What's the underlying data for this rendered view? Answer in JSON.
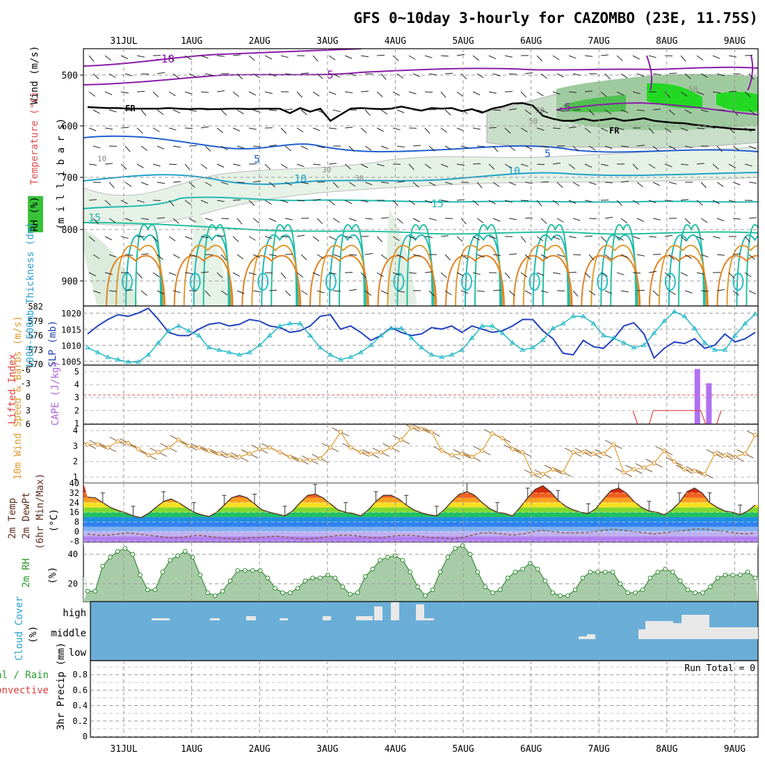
{
  "chart_data": {
    "type": "meteogram",
    "title": "GFS 0~10day 3-hourly for CAZOMBO (23E, 11.75S)",
    "dates": [
      "31JUL",
      "1AUG",
      "2AUG",
      "3AUG",
      "4AUG",
      "5AUG",
      "6AUG",
      "7AUG",
      "8AUG",
      "9AUG"
    ],
    "panels": {
      "upper_air": {
        "ylabels": [
          "Wind (m/s)",
          "Temperature (°C)",
          "RH (%)",
          "(m i l l i b a r s)"
        ],
        "ylim": [
          1000,
          450
        ],
        "yticks": [
          500,
          600,
          700,
          800,
          900
        ],
        "contour_labels": [
          "-10",
          "5",
          "FR",
          "-5",
          "FR",
          "5",
          "5",
          "10",
          "10",
          "15",
          "15",
          "50",
          "50",
          "30",
          "30",
          "30",
          "10"
        ],
        "freezing_level_mb": [
          563,
          564,
          565,
          565,
          566,
          566,
          566,
          566,
          565,
          566,
          567,
          566,
          567,
          567,
          566,
          566,
          567,
          566,
          566,
          566,
          575,
          565,
          572,
          566,
          590,
          578,
          566,
          565,
          566,
          567,
          566,
          562,
          566,
          570,
          565,
          566,
          565,
          571,
          567,
          574,
          566,
          562,
          556,
          555,
          560,
          580,
          586,
          590,
          590,
          586,
          590,
          588,
          585,
          590,
          588,
          585,
          590,
          592,
          594,
          595,
          598,
          600,
          602,
          604,
          606,
          607,
          608
        ]
      },
      "slp_thickness": {
        "ylabels": [
          "1000-500mb Thickness (dm)",
          "SLP (mb)"
        ],
        "left_ticks": [
          "582",
          "579",
          "576",
          "573",
          "570"
        ],
        "right_ticks": [
          "1020",
          "1015",
          "1010",
          "1005"
        ],
        "slp_mb": [
          1013.5,
          1016,
          1018,
          1019.5,
          1019,
          1020,
          1021.5,
          1018,
          1014,
          1013,
          1013,
          1015,
          1016.5,
          1017,
          1016,
          1016.5,
          1018,
          1017.5,
          1016,
          1015.5,
          1014,
          1014.5,
          1016,
          1019,
          1019.5,
          1015,
          1016,
          1014,
          1011.5,
          1013,
          1015.5,
          1014,
          1013,
          1013.5,
          1015.5,
          1015,
          1016,
          1014,
          1016,
          1015,
          1014,
          1014.5,
          1016,
          1018,
          1018,
          1014.5,
          1012,
          1007.5,
          1007,
          1011.5,
          1009.5,
          1009,
          1012,
          1016,
          1017,
          1013.5,
          1006,
          1009,
          1011,
          1010.5,
          1012,
          1009,
          1010,
          1013.5,
          1011,
          1012,
          1014
        ],
        "thickness_dm": [
          573.5,
          572.5,
          571.5,
          571,
          570.5,
          570.5,
          572,
          574.5,
          577,
          578,
          577,
          576,
          573.5,
          573,
          572.5,
          572,
          572.5,
          574,
          576,
          578,
          578.5,
          578.5,
          576,
          573.5,
          572,
          571,
          571.5,
          572.5,
          574,
          576,
          577.5,
          577.5,
          575.5,
          573.5,
          572,
          571.5,
          572,
          573,
          575.5,
          578,
          578,
          576.5,
          574.5,
          573,
          573.5,
          575,
          577.5,
          578.5,
          580,
          580,
          578.5,
          576,
          575.5,
          574.5,
          573.5,
          574,
          576.5,
          579,
          581,
          580,
          577.5,
          574.5,
          573,
          573,
          576,
          578.5,
          580.5
        ]
      },
      "cape_li": {
        "ylabels": [
          "Lifted Index",
          "CAPE (J/kg)"
        ],
        "left_ticks": [
          "-6",
          "-3",
          "0",
          "3",
          "6"
        ],
        "right_ticks": [
          "5",
          "4",
          "3",
          "2",
          "1"
        ],
        "cape_bars": [
          {
            "day": 8.45,
            "value": 5.2
          },
          {
            "day": 8.62,
            "value": 4.1
          }
        ],
        "lifted_index_line": [
          {
            "day": 7.5,
            "value": 6
          },
          {
            "day": 7.62,
            "value": 4.2
          },
          {
            "day": 7.72,
            "value": 4.6
          },
          {
            "day": 7.8,
            "value": 6
          },
          {
            "day": 8.5,
            "value": 6
          },
          {
            "day": 8.62,
            "value": 4.3
          },
          {
            "day": 8.72,
            "value": 4.7
          },
          {
            "day": 8.8,
            "value": 6
          }
        ]
      },
      "wind10m": {
        "ylabels": [
          "10m Wind Speed & Barbs (m/s)"
        ],
        "yticks": [
          "4",
          "3",
          "2",
          "1"
        ],
        "speed_ms": [
          3.1,
          3.1,
          2.9,
          3.3,
          3.2,
          2.8,
          2.4,
          2.6,
          2.9,
          3.4,
          3.0,
          2.9,
          2.7,
          2.5,
          2.4,
          2.3,
          2.5,
          2.8,
          2.9,
          2.6,
          2.3,
          2.1,
          2.1,
          2.2,
          2.9,
          3.9,
          2.9,
          2.6,
          2.5,
          2.6,
          2.9,
          3.4,
          4.2,
          4.1,
          3.9,
          2.7,
          2.4,
          2.5,
          2.3,
          2.7,
          3.8,
          3.5,
          2.8,
          2.6,
          1.2,
          1.2,
          1.5,
          1.3,
          2.6,
          2.6,
          2.5,
          2.5,
          3.1,
          1.3,
          1.5,
          1.6,
          1.9,
          2.7,
          2.0,
          1.5,
          1.4,
          1.2,
          2.5,
          2.4,
          2.3,
          2.5,
          3.7
        ]
      },
      "temperature": {
        "ylabels": [
          "2m Temp",
          "2m DewPt",
          "(6hr Min/Max)",
          "(°C)"
        ],
        "yticks": [
          "40",
          "32",
          "24",
          "16",
          "8",
          "0",
          "-8"
        ],
        "temp_c": [
          28.5,
          28,
          24,
          20,
          17.5,
          15.5,
          13,
          11.5,
          15,
          20,
          25,
          27,
          24,
          20,
          16,
          14,
          12.5,
          16,
          22,
          28,
          30,
          28,
          23,
          18,
          16,
          14.5,
          13,
          17,
          24,
          30,
          31,
          28,
          23,
          18,
          16,
          15,
          13,
          18,
          25,
          30,
          30,
          27,
          22,
          18,
          15.5,
          14,
          13,
          18,
          25,
          31,
          33,
          30,
          24,
          19,
          16,
          15,
          13,
          20,
          28,
          35,
          38,
          33,
          26,
          21,
          18,
          16,
          15,
          19,
          27,
          34,
          36,
          32,
          25,
          20,
          17,
          16,
          14,
          18,
          24,
          33,
          36,
          32,
          24,
          20,
          17,
          16,
          14,
          17,
          22
        ],
        "dewpt_c": [
          -2,
          -3,
          -3,
          -2,
          -1,
          -2,
          -3,
          -4,
          -5,
          -5,
          -4,
          -3,
          -4,
          -5,
          -6,
          -6,
          -5,
          -5,
          -4,
          -4,
          -5,
          -6,
          -6,
          -5,
          -4,
          -3,
          -3,
          -4,
          -5,
          -5,
          -4,
          -3,
          -3,
          -4,
          -5,
          -5,
          -6,
          -5,
          -3,
          -1,
          -1,
          -2,
          -3,
          -2,
          0,
          1,
          0,
          -1,
          -1,
          -1,
          0,
          1,
          2,
          1,
          0,
          -1,
          -2,
          -1,
          0,
          1,
          2,
          2,
          1,
          0,
          -1,
          -2,
          -1
        ]
      },
      "rh2m": {
        "ylabels": [
          "2m RH",
          "(%)"
        ],
        "yticks": [
          "40",
          "20"
        ],
        "rh_pct": [
          15,
          15,
          32,
          38,
          42,
          44,
          40,
          26,
          16,
          16,
          28,
          36,
          39,
          42,
          38,
          26,
          14,
          12,
          15,
          22,
          29,
          29,
          29,
          29,
          24,
          17,
          14,
          14,
          17,
          22,
          24,
          24,
          26,
          24,
          18,
          13,
          14,
          25,
          30,
          36,
          38,
          39,
          36,
          28,
          18,
          12,
          16,
          28,
          38,
          44,
          46,
          40,
          28,
          18,
          14,
          16,
          24,
          28,
          30,
          34,
          30,
          22,
          14,
          12,
          12,
          16,
          24,
          28,
          28,
          28,
          28,
          20,
          14,
          14,
          16,
          24,
          28,
          30,
          28,
          22,
          16,
          14,
          14,
          18,
          24,
          26,
          26,
          26,
          28,
          24
        ]
      },
      "cloud": {
        "ylabels": [
          "Cloud Cover",
          "(%)"
        ],
        "levels": [
          "high",
          "middle",
          "low"
        ]
      },
      "precip": {
        "ylabels": [
          "Total / Rain",
          "Convective",
          "3hr Precip (mm)"
        ],
        "yticks": [
          "0.8",
          "0.6",
          "0.4",
          "0.2",
          "0"
        ],
        "run_total": "Run Total = 0",
        "values_mm": []
      }
    }
  }
}
